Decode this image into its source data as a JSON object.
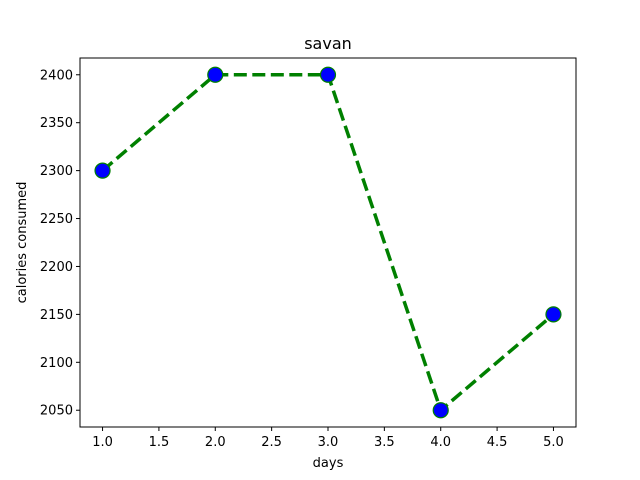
{
  "chart_data": {
    "type": "line",
    "title": "savan",
    "xlabel": "days",
    "ylabel": "calories consumed",
    "x": [
      1,
      2,
      3,
      4,
      5
    ],
    "series": [
      {
        "values": [
          2300,
          2400,
          2400,
          2050,
          2150
        ],
        "line_color": "#008000",
        "line_style": "dashed",
        "marker": "circle",
        "marker_face": "#0000ff",
        "marker_edge": "#008000"
      }
    ],
    "xlim": [
      0.8,
      5.2
    ],
    "ylim": [
      2032.5,
      2417.5
    ],
    "xticks": [
      1.0,
      1.5,
      2.0,
      2.5,
      3.0,
      3.5,
      4.0,
      4.5,
      5.0
    ],
    "xtick_labels": [
      "1.0",
      "1.5",
      "2.0",
      "2.5",
      "3.0",
      "3.5",
      "4.0",
      "4.5",
      "5.0"
    ],
    "yticks": [
      2050,
      2100,
      2150,
      2200,
      2250,
      2300,
      2350,
      2400
    ],
    "ytick_labels": [
      "2050",
      "2100",
      "2150",
      "2200",
      "2250",
      "2300",
      "2350",
      "2400"
    ],
    "grid": false,
    "legend": "none"
  }
}
